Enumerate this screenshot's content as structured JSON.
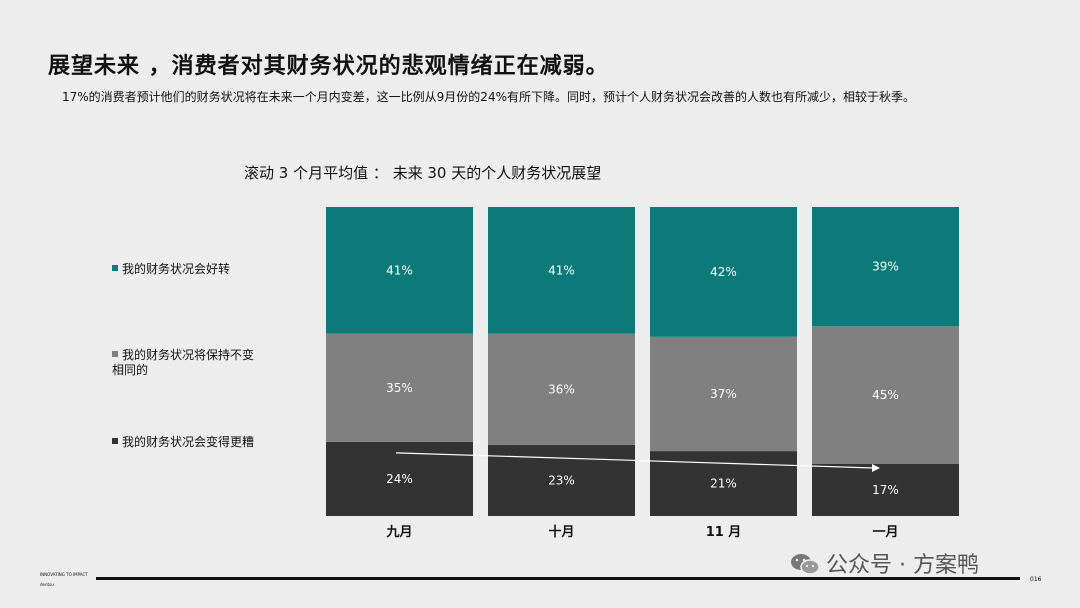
{
  "header": {
    "title": "展望未来 ，消费者对其财务状况的悲观情绪正在减弱。",
    "subtitle": "17%的消费者预计他们的财务状况将在未来一个月内变差，这一比例从9月份的24%有所下降。同时，预计个人财务状况会改善的人数也有所减少，相较于秋季。"
  },
  "chart_data": {
    "type": "bar",
    "stacked": true,
    "normalized": true,
    "title": "滚动 3 个月平均值 ： 未来 30 天的个人财务状况展望",
    "categories": [
      "九月",
      "十月",
      "11 月",
      "一月"
    ],
    "series": [
      {
        "name": "我的财务状况会变得更糟",
        "values": [
          24,
          23,
          21,
          17
        ],
        "labels": [
          "24%",
          "23%",
          "21%",
          "17%"
        ],
        "color": "#333333"
      },
      {
        "name": "我的财务状况将保持不变相同的",
        "values": [
          35,
          36,
          37,
          45
        ],
        "labels": [
          "35%",
          "36%",
          "37%",
          "45%"
        ],
        "color": "#808080"
      },
      {
        "name": "我的财务状况会好转",
        "values": [
          41,
          41,
          42,
          39
        ],
        "labels": [
          "41%",
          "41%",
          "42%",
          "39%"
        ],
        "color": "#0b7a78"
      }
    ],
    "legend_position": "left",
    "grid": false,
    "trend_arrow": {
      "series": "我的财务状况会变得更糟",
      "color": "#ffffff"
    }
  },
  "legend": {
    "better": "我的财务状况会好转",
    "same_line1": "我的财务状况将保持不变",
    "same_line2": "相同的",
    "worse": "我的财务状况会变得更糟"
  },
  "footer": {
    "brand_line": "INNOVATING TO IMPACT",
    "brand": "dentsu",
    "page": "016"
  },
  "watermark": {
    "text": "公众号 · 方案鸭",
    "icon": "wechat-icon"
  }
}
